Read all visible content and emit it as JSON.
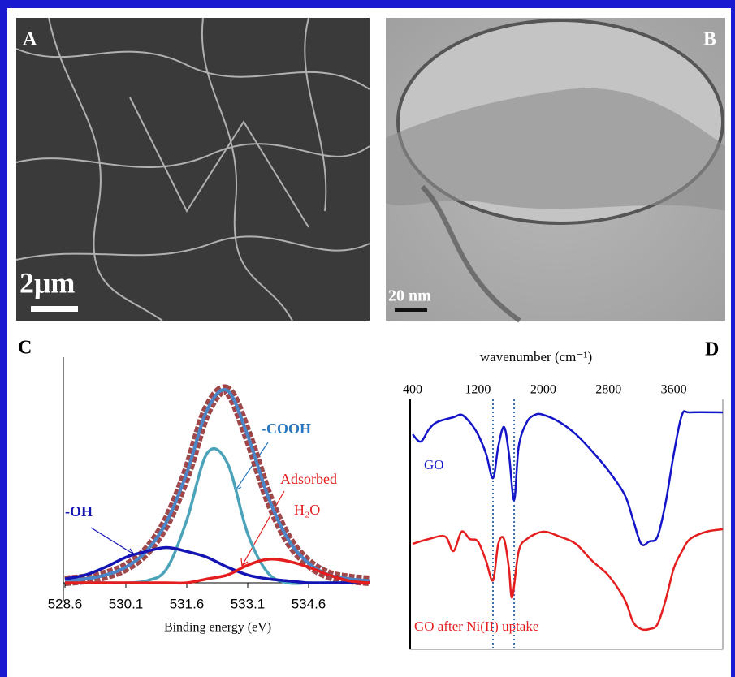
{
  "panels": [
    {
      "label": "A",
      "scale_bar": "2μm"
    },
    {
      "label": "B",
      "scale_bar": "20 nm"
    },
    {
      "label": "C"
    },
    {
      "label": "D"
    }
  ],
  "chart_data": [
    {
      "type": "line",
      "xlabel": "Binding energy (eV)",
      "xlim": [
        528.6,
        536.1
      ],
      "xticks": [
        528.6,
        530.1,
        531.6,
        533.1,
        534.6
      ],
      "ylim": [
        0,
        1.15
      ],
      "x": [
        528.6,
        529.1,
        529.6,
        530.1,
        530.6,
        531.1,
        531.6,
        532.1,
        532.6,
        533.1,
        533.6,
        534.1,
        534.6,
        535.1,
        535.6,
        536.1
      ],
      "series": [
        {
          "color": "#a0474a",
          "line_color": "#4a86c8",
          "values": [
            0.01,
            0.02,
            0.04,
            0.08,
            0.16,
            0.31,
            0.56,
            0.88,
            0.98,
            0.75,
            0.44,
            0.22,
            0.1,
            0.04,
            0.02,
            0.01
          ]
        },
        {
          "color": "#4aa3b8",
          "values": [
            0,
            0,
            0,
            0,
            0.01,
            0.07,
            0.32,
            0.66,
            0.61,
            0.25,
            0.05,
            0,
            0,
            0,
            0,
            0
          ]
        },
        {
          "color": "#1414b4",
          "values": [
            0.02,
            0.04,
            0.08,
            0.13,
            0.16,
            0.18,
            0.16,
            0.13,
            0.08,
            0.04,
            0.02,
            0.01,
            0,
            0,
            0,
            0
          ]
        },
        {
          "color": "#e41e1e",
          "values": [
            0,
            0,
            0,
            0,
            0,
            0,
            0,
            0.02,
            0.04,
            0.09,
            0.12,
            0.11,
            0.08,
            0.04,
            0.01,
            0
          ]
        }
      ],
      "annotations": [
        "-OH",
        "-COOH",
        "Adsorbed",
        "H₂O"
      ]
    },
    {
      "type": "line",
      "xlabel": "wavenumber (cm⁻¹)",
      "xlim": [
        400,
        4200
      ],
      "xticks": [
        400,
        1200,
        2000,
        2800,
        3600
      ],
      "ylim": [
        0,
        100
      ],
      "vlines": [
        1385,
        1644
      ],
      "series": [
        {
          "name": "GO",
          "color": "#1414c8",
          "x": [
            400,
            500,
            600,
            700,
            900,
            1000,
            1100,
            1200,
            1300,
            1385,
            1450,
            1520,
            1580,
            1644,
            1700,
            1800,
            1900,
            2000,
            2200,
            2400,
            2600,
            2800,
            3000,
            3100,
            3200,
            3300,
            3400,
            3500,
            3600,
            3700,
            3800,
            4200
          ],
          "values": [
            85,
            82,
            87,
            90,
            92,
            93,
            90,
            85,
            77,
            67,
            80,
            88,
            77,
            58,
            80,
            90,
            93,
            93,
            90,
            85,
            78,
            70,
            60,
            50,
            40,
            41,
            43,
            57,
            77,
            93,
            94,
            94
          ]
        },
        {
          "name": "GO after Ni(II) uptake",
          "color": "#e41e1e",
          "x": [
            400,
            600,
            800,
            900,
            1000,
            1100,
            1200,
            1300,
            1385,
            1450,
            1520,
            1580,
            1620,
            1700,
            1800,
            2000,
            2200,
            2400,
            2600,
            2800,
            3000,
            3100,
            3200,
            3300,
            3400,
            3500,
            3600,
            3700,
            3800,
            4000,
            4200
          ],
          "values": [
            40,
            42,
            43,
            37,
            45,
            42,
            41,
            33,
            25,
            40,
            42,
            30,
            18,
            37,
            42,
            45,
            43,
            40,
            33,
            27,
            17,
            8,
            5,
            5,
            7,
            17,
            30,
            37,
            42,
            45,
            46
          ]
        }
      ]
    }
  ]
}
